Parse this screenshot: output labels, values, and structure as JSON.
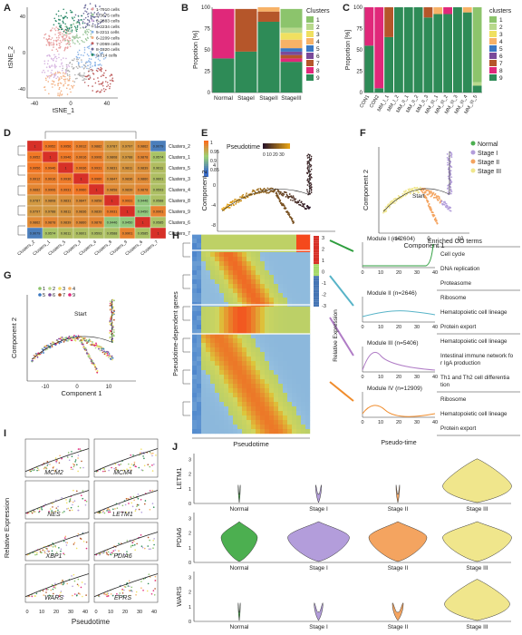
{
  "panel_letters": [
    "A",
    "B",
    "C",
    "D",
    "E",
    "F",
    "G",
    "H",
    "I",
    "J"
  ],
  "panelA": {
    "xlabel": "tSNE_1",
    "ylabel": "tSNE_2",
    "ticks_x": [
      "-40",
      "0",
      "40"
    ],
    "ticks_y": [
      "-40",
      "0",
      "40"
    ],
    "legend": [
      "1-7910 cells",
      "2-3675 cells",
      "3-2883 cells",
      "4-2234 cells",
      "5-2211 cells",
      "6-2209 cells",
      "7-2069 cells",
      "8-1820 cells",
      "9-714 cells"
    ],
    "colors": [
      "#e8a0a0",
      "#9fc89f",
      "#d6b4e0",
      "#b0b0b0",
      "#8ab4e8",
      "#f4b183",
      "#c06060",
      "#6c6c9c",
      "#2d8a6a"
    ]
  },
  "chart_data": [
    {
      "type": "bar",
      "panel": "B",
      "ylabel": "Propotion [%]",
      "yticks": [
        "0",
        "25",
        "50",
        "75",
        "100"
      ],
      "categories": [
        "Normal",
        "StageI",
        "StageII",
        "StageIII"
      ],
      "legend_title": "Clusters",
      "series": [
        {
          "name": "1",
          "color": "#8cc46c",
          "values": [
            0,
            0,
            0,
            22
          ]
        },
        {
          "name": "2",
          "color": "#b8d98c",
          "values": [
            0,
            0,
            0,
            6
          ]
        },
        {
          "name": "3",
          "color": "#f0e060",
          "values": [
            0,
            0,
            0,
            8
          ]
        },
        {
          "name": "4",
          "color": "#f7b267",
          "values": [
            0,
            0,
            5,
            10
          ]
        },
        {
          "name": "5",
          "color": "#3a78c2",
          "values": [
            0,
            0,
            0,
            4
          ]
        },
        {
          "name": "6",
          "color": "#7a4a9a",
          "values": [
            0,
            0,
            0,
            4
          ]
        },
        {
          "name": "7",
          "color": "#b5562a",
          "values": [
            0,
            50,
            12,
            4
          ]
        },
        {
          "name": "8",
          "color": "#e0287a",
          "values": [
            58,
            0,
            0,
            4
          ]
        },
        {
          "name": "9",
          "color": "#2e8b57",
          "values": [
            40,
            48,
            83,
            36
          ]
        }
      ]
    },
    {
      "type": "bar",
      "panel": "C",
      "ylabel": "Proportion [%]",
      "yticks": [
        "0",
        "25",
        "50",
        "75",
        "100"
      ],
      "categories": [
        "CON1",
        "CON2",
        "MM_I_1",
        "MM_I_2",
        "MM_II_1",
        "MM_II_2",
        "MM_II_3",
        "MM_III_1",
        "MM_III_2",
        "MM_III_3",
        "MM_III_4",
        "MM_III_5"
      ],
      "legend_title": "clusters",
      "series": [
        {
          "name": "1",
          "color": "#8cc46c",
          "values": [
            0,
            0,
            0,
            0,
            0,
            0,
            0,
            0,
            0,
            0,
            0,
            88
          ]
        },
        {
          "name": "2",
          "color": "#b8d98c",
          "values": [
            0,
            0,
            0,
            0,
            0,
            0,
            0,
            0,
            0,
            0,
            0,
            4
          ]
        },
        {
          "name": "3",
          "color": "#f0e060",
          "values": [
            0,
            0,
            0,
            0,
            0,
            0,
            0,
            0,
            0,
            0,
            0,
            0
          ]
        },
        {
          "name": "4",
          "color": "#f7b267",
          "values": [
            0,
            0,
            0,
            0,
            0,
            0,
            0,
            8,
            0,
            0,
            6,
            0
          ]
        },
        {
          "name": "5",
          "color": "#3a78c2",
          "values": [
            0,
            0,
            0,
            0,
            0,
            0,
            0,
            0,
            0,
            0,
            0,
            0
          ]
        },
        {
          "name": "6",
          "color": "#7a4a9a",
          "values": [
            0,
            0,
            0,
            0,
            0,
            0,
            0,
            0,
            0,
            0,
            0,
            0
          ]
        },
        {
          "name": "7",
          "color": "#b5562a",
          "values": [
            0,
            0,
            35,
            0,
            0,
            0,
            12,
            0,
            0,
            0,
            0,
            0
          ]
        },
        {
          "name": "8",
          "color": "#e0287a",
          "values": [
            45,
            95,
            0,
            0,
            0,
            0,
            0,
            0,
            8,
            0,
            0,
            0
          ]
        },
        {
          "name": "9",
          "color": "#2e8b57",
          "values": [
            55,
            5,
            65,
            100,
            100,
            100,
            88,
            92,
            92,
            100,
            94,
            8
          ]
        }
      ]
    },
    {
      "type": "heatmap",
      "panel": "D",
      "rows": [
        "Clusters_2",
        "Clusters_1",
        "Clusters_5",
        "Clusters_3",
        "Clusters_4",
        "Clusters_8",
        "Clusters_9",
        "Clusters_6",
        "Clusters_7"
      ],
      "cols": [
        "Clusters_2",
        "Clusters_1",
        "Clusters_5",
        "Clusters_3",
        "Clusters_4",
        "Clusters_8",
        "Clusters_9",
        "Clusters_6",
        "Clusters_7"
      ],
      "values": [
        [
          1,
          0.9952,
          0.9956,
          0.9912,
          0.9882,
          0.9787,
          0.9797,
          0.9862,
          0.9079
        ],
        [
          0.9952,
          1,
          0.9946,
          0.9916,
          0.9906,
          0.9808,
          0.9788,
          0.9878,
          0.9574
        ],
        [
          0.9956,
          0.9946,
          1,
          0.9936,
          0.9931,
          0.9831,
          0.9811,
          0.9839,
          0.9611
        ],
        [
          0.9912,
          0.9916,
          0.9936,
          1,
          0.996,
          0.9847,
          0.9836,
          0.986,
          0.9601
        ],
        [
          0.9882,
          0.9906,
          0.9931,
          0.996,
          1,
          0.9858,
          0.9839,
          0.9878,
          0.9593
        ],
        [
          0.9787,
          0.9808,
          0.9831,
          0.9847,
          0.9858,
          1,
          0.9931,
          0.9446,
          0.9588
        ],
        [
          0.9797,
          0.9788,
          0.9811,
          0.9836,
          0.9839,
          0.9931,
          1,
          0.945,
          0.9901
        ],
        [
          0.9862,
          0.9878,
          0.9839,
          0.986,
          0.9878,
          0.9446,
          0.945,
          1,
          0.9585
        ],
        [
          0.9079,
          0.9574,
          0.9611,
          0.9601,
          0.9593,
          0.9588,
          0.9901,
          0.9585,
          1
        ]
      ],
      "scale_ticks": [
        "1",
        "0.95",
        "0.9",
        "0.85"
      ]
    },
    {
      "type": "violin",
      "panel": "J",
      "categories": [
        "Normal",
        "Stage I",
        "Stage II",
        "Stage III"
      ],
      "colors": [
        "#4caf50",
        "#b39ddb",
        "#f4a460",
        "#f0e68c"
      ],
      "genes": [
        "LETM1",
        "PDIA6",
        "WARS"
      ],
      "yticks": [
        "0",
        "1",
        "2",
        "3"
      ],
      "widths": [
        [
          0.03,
          0.08,
          0.05,
          0.95
        ],
        [
          0.5,
          0.85,
          0.8,
          0.95
        ],
        [
          0.03,
          0.12,
          0.15,
          0.9
        ]
      ]
    }
  ],
  "panelE": {
    "title": "Pseudotime",
    "xlabel": "Component 1",
    "ylabel": "Component 2",
    "scale": "0 10 20 30",
    "ticks_x": [
      "-10",
      "0",
      "10"
    ],
    "ticks_y": [
      "-8",
      "-4",
      "0",
      "4"
    ]
  },
  "panelF": {
    "xlabel": "Component 1",
    "ylabel": "Component 2",
    "start": "Start",
    "legend": [
      "Normal",
      "Stage I",
      "Stage II",
      "Stage III"
    ],
    "colors": [
      "#4caf50",
      "#b39ddb",
      "#f4a460",
      "#f0e68c"
    ]
  },
  "panelG": {
    "xlabel": "Component 1",
    "ylabel": "Component 2",
    "start": "Start",
    "legend": [
      "1",
      "2",
      "3",
      "4",
      "5",
      "6",
      "7",
      "9"
    ]
  },
  "panelH": {
    "ylabel": "Pseudotime-dependent genes",
    "xlabel": "Pseudotime",
    "scale": [
      "3",
      "2",
      "1",
      "0",
      "-1",
      "-2",
      "-3"
    ],
    "go_header": "Enriched GO terms",
    "curve_ylabel": "Relative Expression",
    "curve_xlabel": "Pseudo-time",
    "modules": [
      {
        "name": "Module I (n=2604)",
        "terms": [
          "Cell cycle",
          "DNA replication",
          "Proteasome"
        ]
      },
      {
        "name": "Module II (n=2646)",
        "terms": [
          "Ribosome",
          "Hematopoietic cell lineage",
          "Protein export"
        ]
      },
      {
        "name": "Module III (n=5406)",
        "terms": [
          "Hematopoietic cell lineage",
          "Intestinal immune network for IgA production",
          "Th1 and Th2 cell differentiation"
        ]
      },
      {
        "name": "Module IV (n=12909)",
        "terms": [
          "Ribosome",
          "Hematopoietic cell lineage",
          "Protein export"
        ]
      }
    ]
  },
  "panelI": {
    "ylabel": "Relative Expression",
    "xlabel": "Pseudotime",
    "genes": [
      "MCM2",
      "MCM4",
      "NES",
      "LETM1",
      "XBP1",
      "PDIA6",
      "WARS",
      "EPRS"
    ]
  }
}
